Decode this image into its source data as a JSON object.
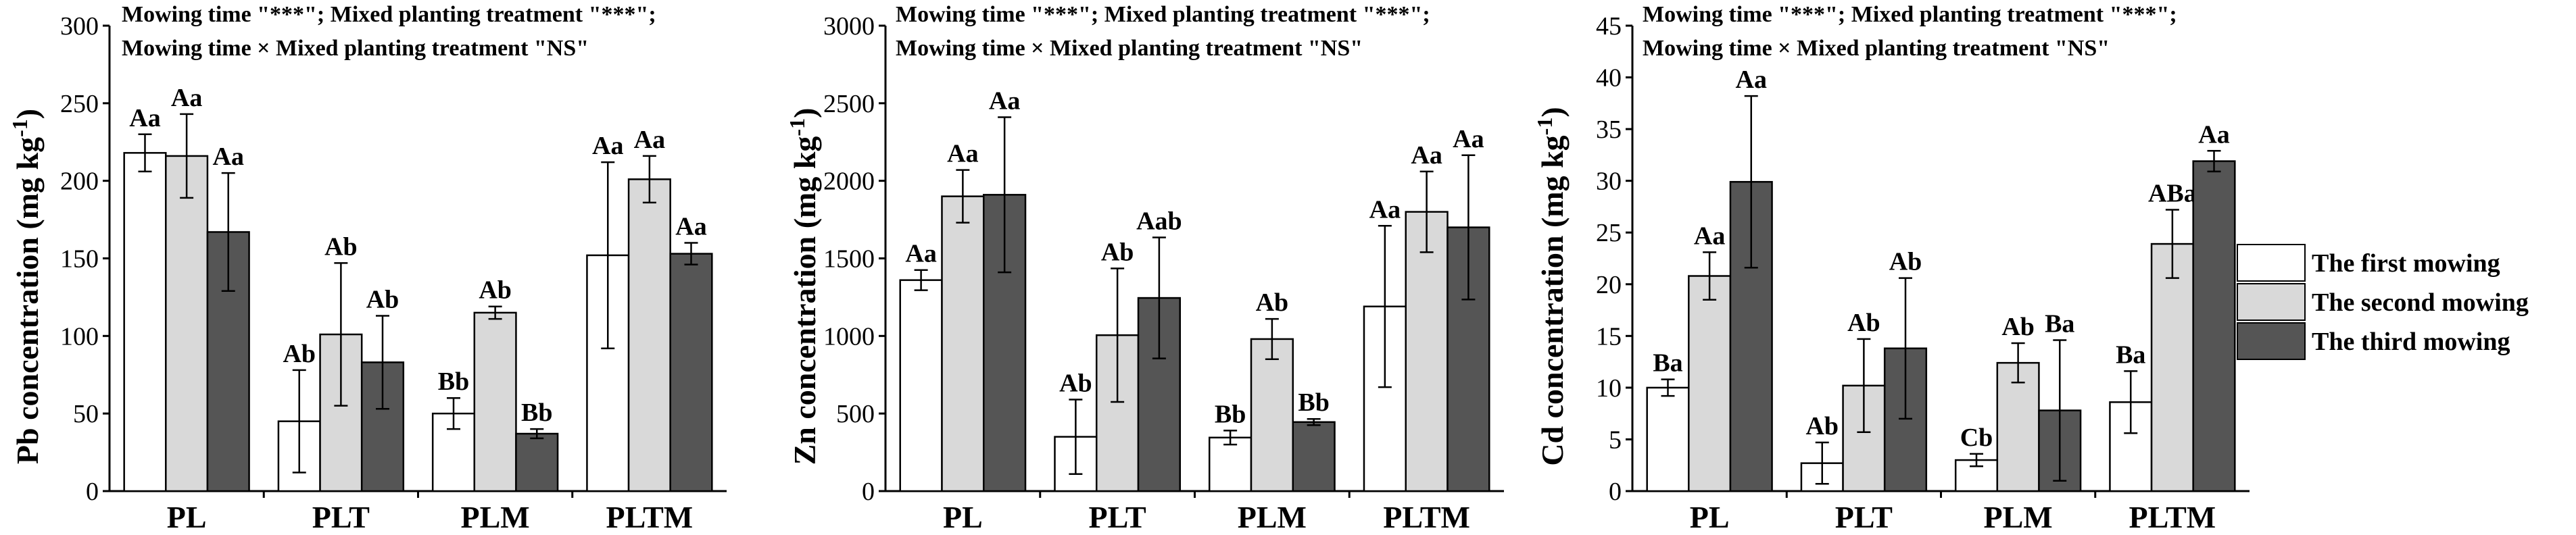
{
  "chart_data": [
    {
      "type": "bar",
      "panel": "Pb",
      "annotation_line1": "Mowing time \"***\"; Mixed planting treatment \"***\";",
      "annotation_line2": "Mowing time × Mixed planting treatment \"NS\"",
      "ylabel": "Pb concentration (mg kg-1)",
      "ylabel_main": "Pb concentration (mg kg",
      "ylabel_sup": "-1",
      "ylabel_close": ")",
      "ylim": [
        0,
        300
      ],
      "yticks": [
        0,
        50,
        100,
        150,
        200,
        250,
        300
      ],
      "categories": [
        "PL",
        "PLT",
        "PLM",
        "PLTM"
      ],
      "series": [
        {
          "name": "The first mowing",
          "values": [
            218,
            45,
            50,
            152
          ],
          "errors": [
            12,
            33,
            10,
            60
          ],
          "labels": [
            "Aa",
            "Ab",
            "Bb",
            "Aa"
          ]
        },
        {
          "name": "The second mowing",
          "values": [
            216,
            101,
            115,
            201
          ],
          "errors": [
            27,
            46,
            4,
            15
          ],
          "labels": [
            "Aa",
            "Ab",
            "Ab",
            "Aa"
          ]
        },
        {
          "name": "The third mowing",
          "values": [
            167,
            83,
            37,
            153
          ],
          "errors": [
            38,
            30,
            3,
            7
          ],
          "labels": [
            "Aa",
            "Ab",
            "Bb",
            "Aa"
          ]
        }
      ]
    },
    {
      "type": "bar",
      "panel": "Zn",
      "annotation_line1": "Mowing time \"***\"; Mixed planting treatment \"***\";",
      "annotation_line2": "Mowing time × Mixed planting treatment \"NS\"",
      "ylabel": "Zn concentration (mg kg-1)",
      "ylabel_main": "Zn concentration (mg kg",
      "ylabel_sup": "-1",
      "ylabel_close": ")",
      "ylim": [
        0,
        3000
      ],
      "yticks": [
        0,
        500,
        1000,
        1500,
        2000,
        2500,
        3000
      ],
      "categories": [
        "PL",
        "PLT",
        "PLM",
        "PLTM"
      ],
      "series": [
        {
          "name": "The first mowing",
          "values": [
            1360,
            350,
            345,
            1190
          ],
          "errors": [
            65,
            240,
            45,
            520
          ],
          "labels": [
            "Aa",
            "Ab",
            "Bb",
            "Aa"
          ]
        },
        {
          "name": "The second mowing",
          "values": [
            1900,
            1005,
            980,
            1800
          ],
          "errors": [
            170,
            430,
            130,
            260
          ],
          "labels": [
            "Aa",
            "Ab",
            "Ab",
            "Aa"
          ]
        },
        {
          "name": "The third mowing",
          "values": [
            1910,
            1245,
            445,
            1700
          ],
          "errors": [
            500,
            390,
            20,
            465
          ],
          "labels": [
            "Aa",
            "Aab",
            "Bb",
            "Aa"
          ]
        }
      ]
    },
    {
      "type": "bar",
      "panel": "Cd",
      "annotation_line1": "Mowing time \"***\"; Mixed planting treatment \"***\";",
      "annotation_line2": "Mowing time × Mixed planting treatment \"NS\"",
      "ylabel": "Cd concentration (mg kg-1)",
      "ylabel_main": "Cd concentration (mg kg",
      "ylabel_sup": "-1",
      "ylabel_close": ")",
      "ylim": [
        0,
        45
      ],
      "yticks": [
        0,
        5,
        10,
        15,
        20,
        25,
        30,
        35,
        40,
        45
      ],
      "categories": [
        "PL",
        "PLT",
        "PLM",
        "PLTM"
      ],
      "series": [
        {
          "name": "The first mowing",
          "values": [
            10,
            2.7,
            3,
            8.6
          ],
          "errors": [
            0.8,
            2,
            0.6,
            3
          ],
          "labels": [
            "Ba",
            "Ab",
            "Cb",
            "Ba"
          ]
        },
        {
          "name": "The second mowing",
          "values": [
            20.8,
            10.2,
            12.4,
            23.9
          ],
          "errors": [
            2.3,
            4.5,
            1.9,
            3.3
          ],
          "labels": [
            "Aa",
            "Ab",
            "Ab",
            "ABa"
          ]
        },
        {
          "name": "The third mowing",
          "values": [
            29.9,
            13.8,
            7.8,
            31.9
          ],
          "errors": [
            8.3,
            6.8,
            6.8,
            1
          ],
          "labels": [
            "Aa",
            "Ab",
            "Ba",
            "Aa"
          ]
        }
      ]
    }
  ],
  "legend": {
    "items": [
      {
        "name": "The first mowing",
        "color": "#ffffff"
      },
      {
        "name": "The second mowing",
        "color": "#d9d9d9"
      },
      {
        "name": "The third mowing",
        "color": "#555555"
      }
    ]
  }
}
